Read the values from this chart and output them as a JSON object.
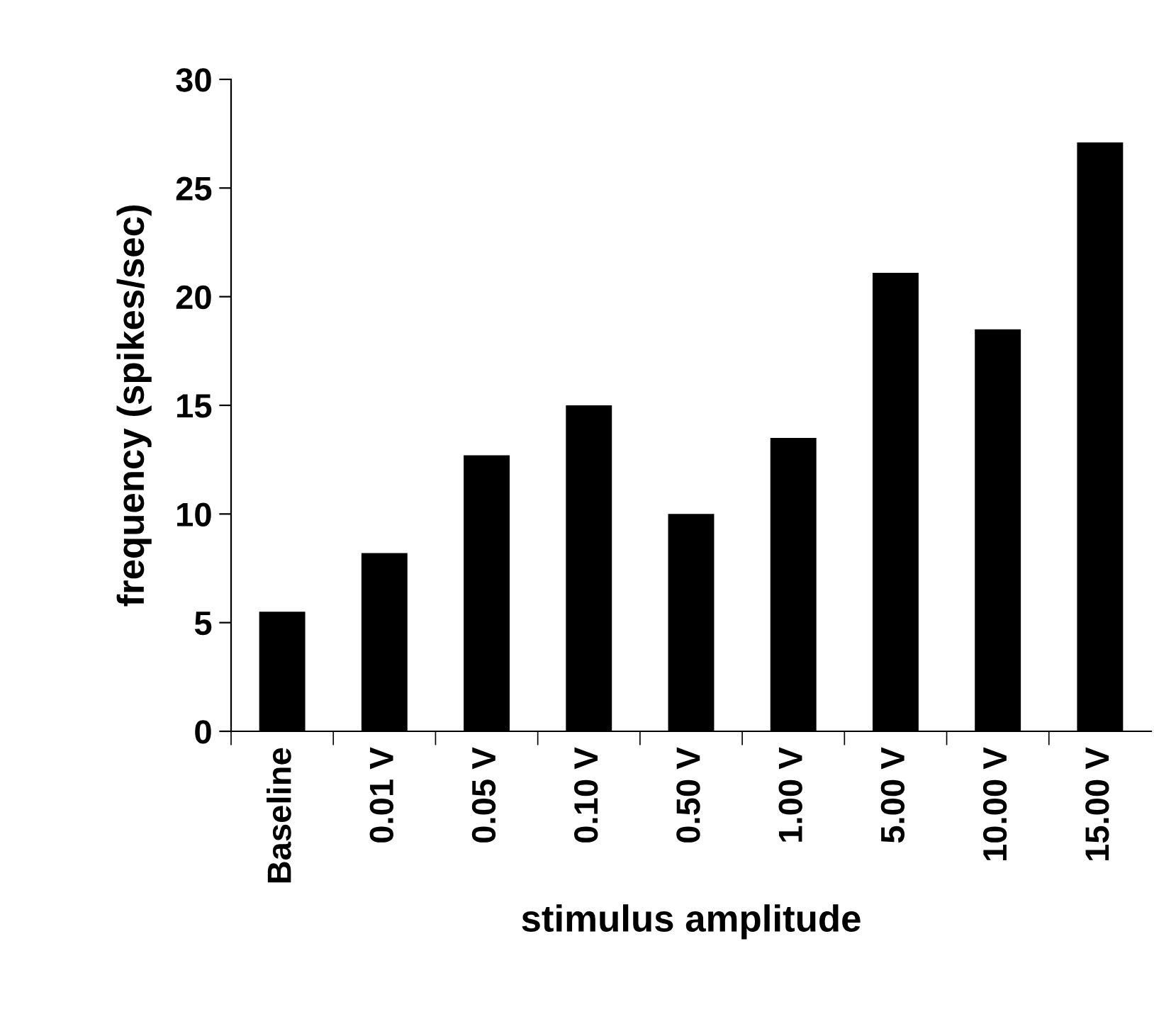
{
  "chart_data": {
    "type": "bar",
    "xlabel": "stimulus amplitude",
    "ylabel": "frequency (spikes/sec)",
    "categories": [
      "Baseline",
      "0.01 V",
      "0.05 V",
      "0.10 V",
      "0.50 V",
      "1.00 V",
      "5.00 V",
      "10.00 V",
      "15.00 V"
    ],
    "values": [
      5.5,
      8.2,
      12.7,
      15.0,
      10.0,
      13.5,
      21.1,
      18.5,
      27.1
    ],
    "color": "#000000",
    "ylim": [
      0,
      30
    ],
    "yticks": [
      0,
      5,
      10,
      15,
      20,
      25,
      30
    ],
    "grid": false,
    "legend": false
  }
}
